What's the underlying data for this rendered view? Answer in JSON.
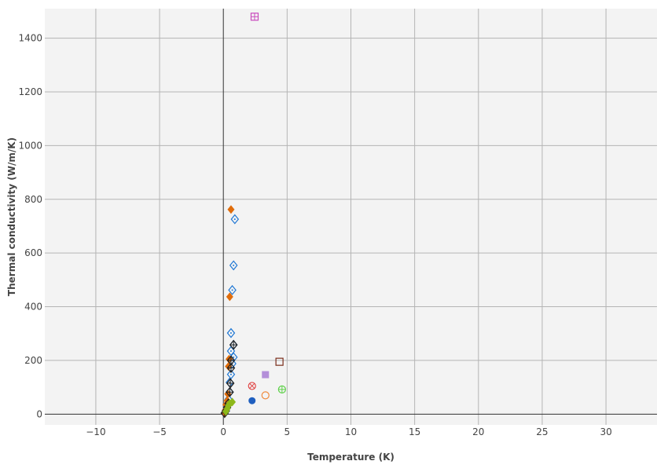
{
  "chart_data": {
    "type": "scatter",
    "title": "",
    "xlabel": "Temperature (K)",
    "ylabel": "Thermal conductivity (W/m/K)",
    "xlim": [
      -14,
      34
    ],
    "ylim": [
      -40,
      1510
    ],
    "x_ticks": [
      -10,
      -5,
      0,
      5,
      10,
      15,
      20,
      25,
      30
    ],
    "x_tick_labels": [
      "−10",
      "−5",
      "0",
      "5",
      "10",
      "15",
      "20",
      "25",
      "30"
    ],
    "y_ticks": [
      0,
      200,
      400,
      600,
      800,
      1000,
      1200,
      1400
    ],
    "y_tick_labels": [
      "0",
      "200",
      "400",
      "600",
      "800",
      "1000",
      "1200",
      "1400"
    ],
    "grid": true,
    "legend": "none",
    "colors": {
      "plot_bg": "#f3f3f3",
      "grid": "#b4b4b4",
      "zero_line": "#333333"
    },
    "series": [
      {
        "marker": "diamond-open-dot",
        "color": "#1f77d4",
        "points": [
          [
            0.9,
            726
          ],
          [
            0.8,
            554
          ],
          [
            0.7,
            462
          ],
          [
            0.6,
            302
          ],
          [
            0.8,
            258
          ],
          [
            0.6,
            235
          ],
          [
            0.8,
            212
          ],
          [
            0.7,
            188
          ],
          [
            0.6,
            148
          ],
          [
            0.5,
            118
          ],
          [
            0.5,
            82
          ],
          [
            0.4,
            55
          ],
          [
            0.3,
            30
          ],
          [
            0.2,
            12
          ]
        ]
      },
      {
        "marker": "diamond",
        "color": "#e06c0a",
        "points": [
          [
            0.6,
            762
          ],
          [
            0.5,
            437
          ],
          [
            0.45,
            205
          ],
          [
            0.4,
            178
          ],
          [
            0.35,
            75
          ],
          [
            0.3,
            50
          ],
          [
            0.2,
            35
          ],
          [
            0.15,
            15
          ],
          [
            0.1,
            5
          ]
        ]
      },
      {
        "marker": "diamond-cross-open",
        "color": "#222222",
        "points": [
          [
            0.8,
            258
          ],
          [
            0.6,
            200
          ],
          [
            0.6,
            172
          ],
          [
            0.55,
            115
          ],
          [
            0.5,
            82
          ],
          [
            0.4,
            40
          ],
          [
            0.3,
            25
          ],
          [
            0.2,
            12
          ],
          [
            0.1,
            4
          ]
        ]
      },
      {
        "marker": "diamond",
        "color": "#8db81a",
        "points": [
          [
            0.7,
            45
          ],
          [
            0.5,
            40
          ],
          [
            0.4,
            32
          ],
          [
            0.3,
            20
          ],
          [
            0.2,
            10
          ]
        ]
      },
      {
        "marker": "square-cross-open",
        "color": "#c94bbd",
        "points": [
          [
            2.45,
            1480
          ]
        ]
      },
      {
        "marker": "square-open",
        "color": "#7a2d1a",
        "points": [
          [
            4.4,
            195
          ]
        ]
      },
      {
        "marker": "square",
        "color": "#b48fd9",
        "points": [
          [
            3.3,
            147
          ]
        ]
      },
      {
        "marker": "circle-x-open",
        "color": "#e04545",
        "points": [
          [
            2.25,
            105
          ]
        ]
      },
      {
        "marker": "circle-cross-open",
        "color": "#5fd14a",
        "points": [
          [
            4.6,
            92
          ]
        ]
      },
      {
        "marker": "circle-open",
        "color": "#f08a3c",
        "points": [
          [
            3.3,
            70
          ]
        ]
      },
      {
        "marker": "circle",
        "color": "#1f5fbf",
        "points": [
          [
            2.25,
            50
          ]
        ]
      }
    ]
  }
}
